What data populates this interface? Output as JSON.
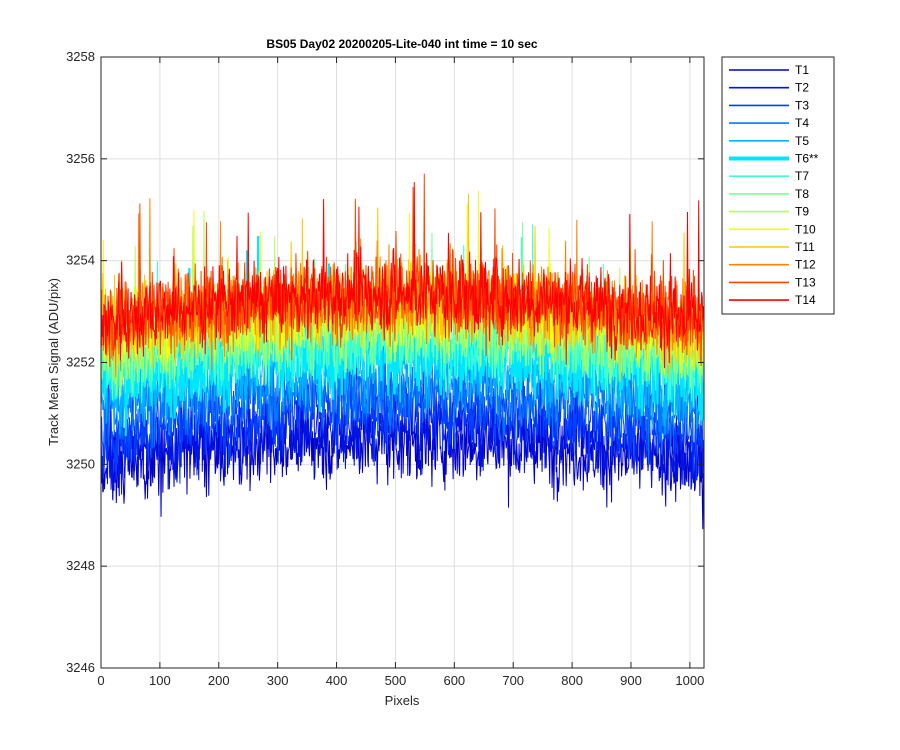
{
  "chart_data": {
    "type": "line",
    "title": "BS05 Day02 20200205-Lite-040 int time = 10 sec",
    "xlabel": "Pixels",
    "ylabel": "Track Mean Signal (ADU/pix)",
    "xlim": [
      0,
      1024
    ],
    "ylim": [
      3246,
      3258
    ],
    "xticks": [
      "0",
      "100",
      "200",
      "300",
      "400",
      "500",
      "600",
      "700",
      "800",
      "900",
      "1000"
    ],
    "yticks": [
      "3246",
      "3248",
      "3250",
      "3252",
      "3254",
      "3256",
      "3258"
    ],
    "grid": true,
    "legend_position": "outside-top-right",
    "series": [
      {
        "name": "T1",
        "color": "#0000c8",
        "mean": 3250.2,
        "highlight": false
      },
      {
        "name": "T2",
        "color": "#0014e6",
        "mean": 3250.5,
        "highlight": false
      },
      {
        "name": "T3",
        "color": "#0040ff",
        "mean": 3250.9,
        "highlight": false
      },
      {
        "name": "T4",
        "color": "#0078ff",
        "mean": 3251.3,
        "highlight": false
      },
      {
        "name": "T5",
        "color": "#00b4ff",
        "mean": 3251.7,
        "highlight": false
      },
      {
        "name": "T6**",
        "color": "#00e6ff",
        "mean": 3252.0,
        "highlight": true
      },
      {
        "name": "T7",
        "color": "#3cffd2",
        "mean": 3252.2,
        "highlight": false
      },
      {
        "name": "T8",
        "color": "#78ff96",
        "mean": 3252.4,
        "highlight": false
      },
      {
        "name": "T9",
        "color": "#b4ff5a",
        "mean": 3252.6,
        "highlight": false
      },
      {
        "name": "T10",
        "color": "#f0ff14",
        "mean": 3252.8,
        "highlight": false
      },
      {
        "name": "T11",
        "color": "#ffc800",
        "mean": 3252.9,
        "highlight": false
      },
      {
        "name": "T12",
        "color": "#ff8200",
        "mean": 3253.0,
        "highlight": false
      },
      {
        "name": "T13",
        "color": "#ff4600",
        "mean": 3253.1,
        "highlight": false
      },
      {
        "name": "T14",
        "color": "#ff0000",
        "mean": 3253.1,
        "highlight": false
      }
    ]
  }
}
